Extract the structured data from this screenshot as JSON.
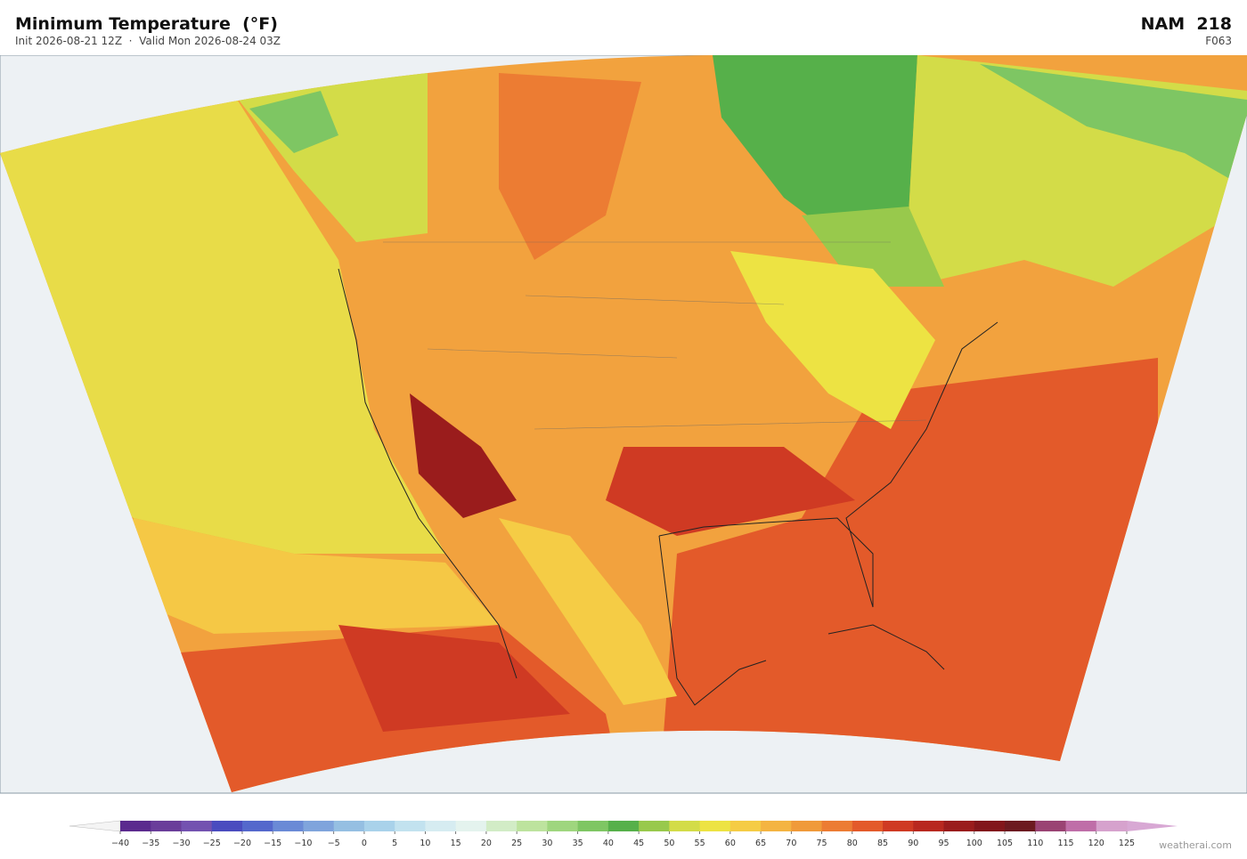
{
  "header": {
    "title": "Minimum Temperature  (°F)",
    "subtitle": "Init 2026-08-21 12Z  ·  Valid Mon 2026-08-24 03Z",
    "model": "NAM  218",
    "forecast_hour": "F063"
  },
  "colorbar": {
    "ticks": [
      {
        "value": -40,
        "label": "−40"
      },
      {
        "value": -35,
        "label": "−35"
      },
      {
        "value": -30,
        "label": "−30"
      },
      {
        "value": -25,
        "label": "−25"
      },
      {
        "value": -20,
        "label": "−20"
      },
      {
        "value": -15,
        "label": "−15"
      },
      {
        "value": -10,
        "label": "−10"
      },
      {
        "value": -5,
        "label": "−5"
      },
      0,
      5,
      10,
      15,
      20,
      25,
      30,
      35,
      40,
      45,
      50,
      55,
      60,
      65,
      70,
      75,
      80,
      85,
      90,
      95,
      100,
      105,
      110,
      115,
      120,
      125
    ],
    "colors": [
      "#5b2a8e",
      "#6a3d9a",
      "#7352b0",
      "#4a4cbf",
      "#5468cc",
      "#6a8ad6",
      "#7fa4dc",
      "#95bfe2",
      "#a9d2ea",
      "#c2e2ef",
      "#d6ecf1",
      "#e4f3ee",
      "#d2ecc6",
      "#bde39e",
      "#9fd67e",
      "#7ec663",
      "#56b04a",
      "#98c94c",
      "#d3dc48",
      "#ede343",
      "#f5cc45",
      "#f4b442",
      "#f09a3a",
      "#ec7c33",
      "#e35a2a",
      "#cf3a23",
      "#b8281f",
      "#9a1c1c",
      "#82161b",
      "#6c1a20",
      "#9a4373",
      "#bf6ea8",
      "#d6a2cd"
    ],
    "under_color": "#f4f4f4",
    "over_color": "#d8a8d4"
  },
  "footer": {
    "credit": "weatherai.com"
  }
}
